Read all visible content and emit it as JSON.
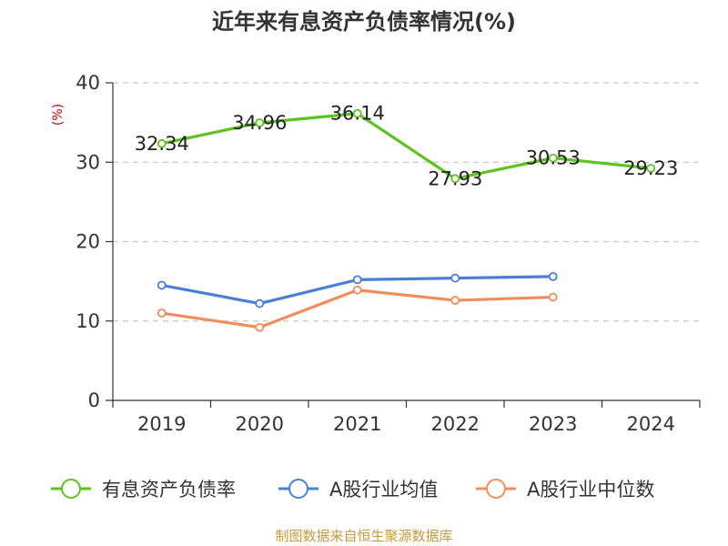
{
  "chart_data": {
    "type": "line",
    "title": "近年来有息资产负债率情况(%)",
    "ylabel": "(%)",
    "ylabel_color": "#cc0000",
    "ylim": [
      0,
      40
    ],
    "yticks": [
      0,
      10,
      20,
      30,
      40
    ],
    "grid": true,
    "legend_position": "bottom",
    "categories": [
      "2019",
      "2020",
      "2021",
      "2022",
      "2023",
      "2024"
    ],
    "series": [
      {
        "name": "有息资产负债率",
        "color": "#5ec21f",
        "values": [
          32.34,
          34.96,
          36.14,
          27.93,
          30.53,
          29.23
        ],
        "labels": [
          "32.34",
          "34.96",
          "36.14",
          "27.93",
          "30.53",
          "29.23"
        ],
        "show_labels": true
      },
      {
        "name": "A股行业均值",
        "color": "#4a7fd6",
        "values": [
          14.5,
          12.2,
          15.2,
          15.4,
          15.6,
          null
        ],
        "show_labels": false
      },
      {
        "name": "A股行业中位数",
        "color": "#f28c5a",
        "values": [
          11.0,
          9.2,
          13.9,
          12.6,
          13.0,
          null
        ],
        "show_labels": false
      }
    ],
    "source": "制图数据来自恒生聚源数据库",
    "source_color": "#c49a3c"
  }
}
